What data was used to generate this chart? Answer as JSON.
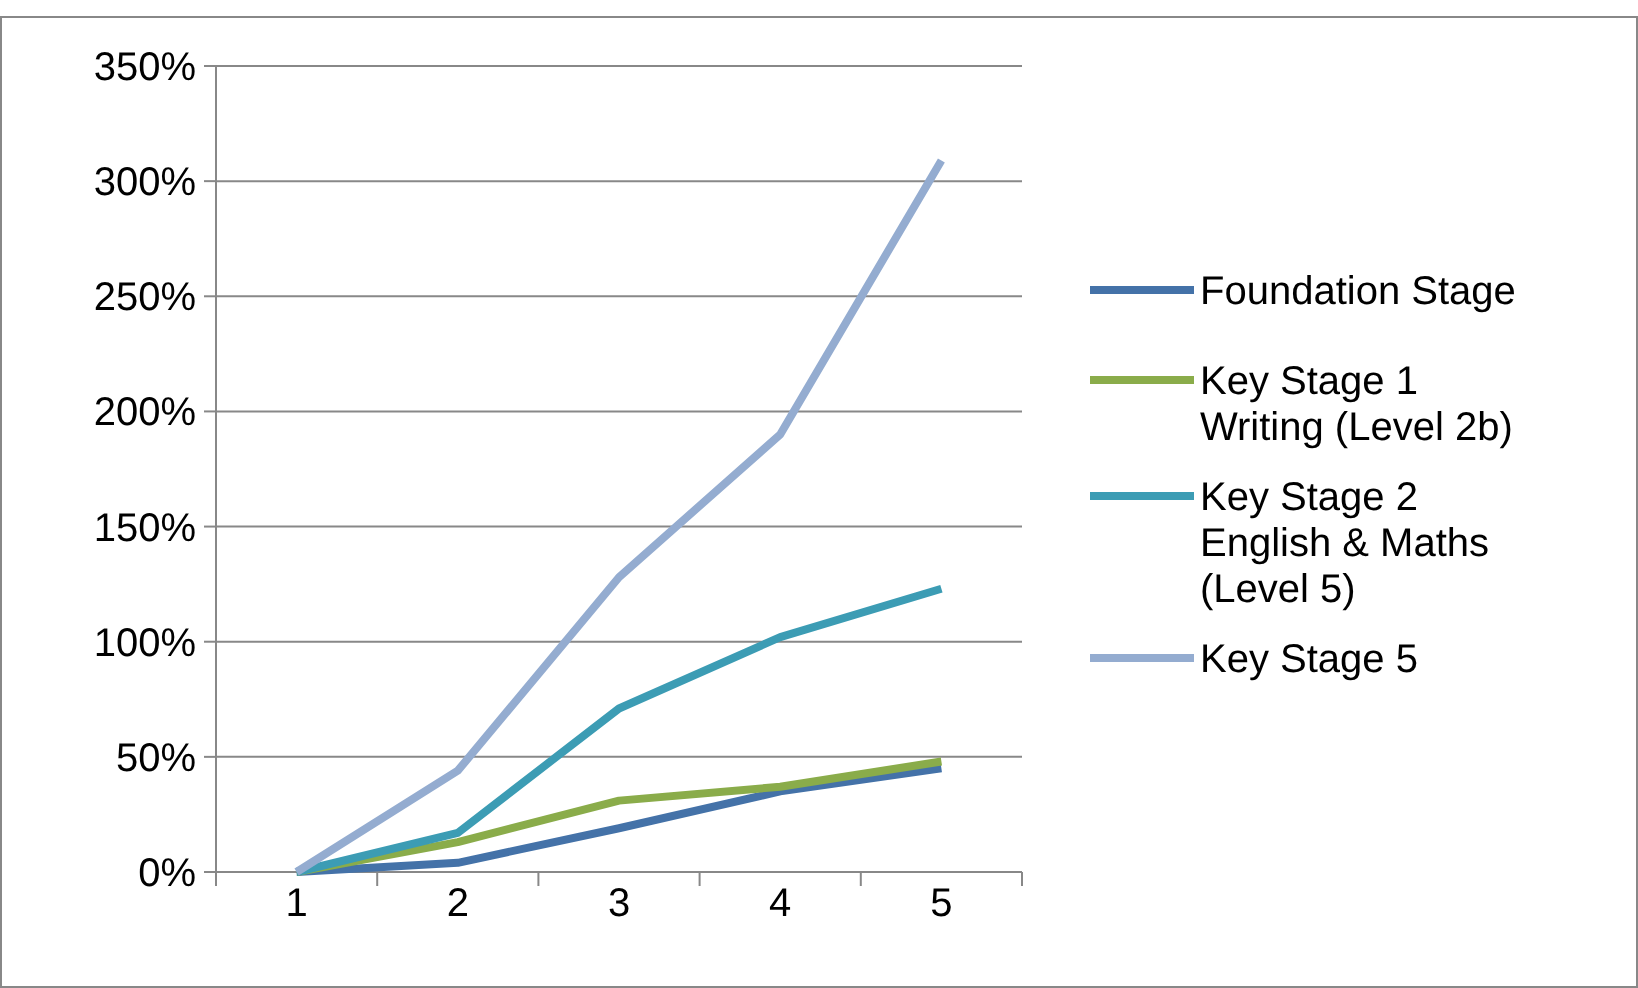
{
  "chart_data": {
    "type": "line",
    "categories": [
      "1",
      "2",
      "3",
      "4",
      "5"
    ],
    "series": [
      {
        "name": "Foundation Stage",
        "color": "#4472a8",
        "values": [
          0,
          4,
          19,
          35,
          45
        ]
      },
      {
        "name": "Key Stage 1 Writing (Level 2b)",
        "color": "#8aac4a",
        "values": [
          0,
          13,
          31,
          37,
          48
        ]
      },
      {
        "name": "Key Stage 2 English & Maths (Level 5)",
        "color": "#3c9cb4",
        "values": [
          0,
          17,
          71,
          102,
          123
        ]
      },
      {
        "name": "Key Stage 5",
        "color": "#94acd0",
        "values": [
          0,
          44,
          128,
          190,
          309
        ]
      }
    ],
    "ylim": [
      0,
      350
    ],
    "yticks": [
      {
        "value": 0,
        "label": "0%"
      },
      {
        "value": 50,
        "label": "50%"
      },
      {
        "value": 100,
        "label": "100%"
      },
      {
        "value": 150,
        "label": "150%"
      },
      {
        "value": 200,
        "label": "200%"
      },
      {
        "value": 250,
        "label": "250%"
      },
      {
        "value": 300,
        "label": "300%"
      },
      {
        "value": 350,
        "label": "350%"
      }
    ],
    "grid": "y",
    "legend": "right",
    "marker": "none",
    "line_style": "solid"
  }
}
